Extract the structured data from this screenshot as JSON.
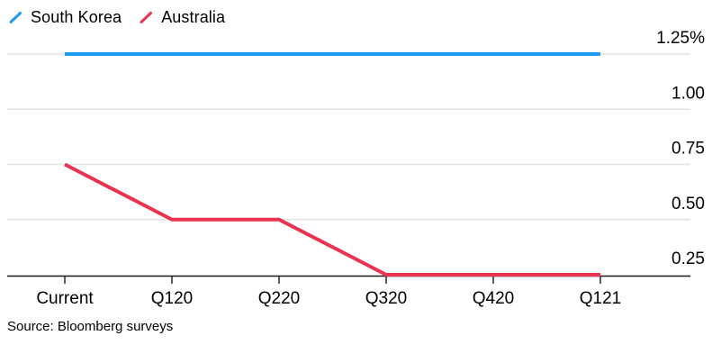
{
  "legend": {
    "items": [
      {
        "label": "South Korea",
        "color": "#1F9BF0",
        "marker": "slash-icon"
      },
      {
        "label": "Australia",
        "color": "#E93350",
        "marker": "slash-icon"
      }
    ]
  },
  "chart_data": {
    "type": "line",
    "categories": [
      "Current",
      "Q120",
      "Q220",
      "Q320",
      "Q420",
      "Q121"
    ],
    "series": [
      {
        "name": "South Korea",
        "color": "#1F9BF0",
        "values": [
          1.25,
          1.25,
          1.25,
          1.25,
          1.25,
          1.25
        ]
      },
      {
        "name": "Australia",
        "color": "#E93350",
        "values": [
          0.75,
          0.5,
          0.5,
          0.25,
          0.25,
          0.25
        ]
      }
    ],
    "title": "",
    "xlabel": "",
    "ylabel": "",
    "unit": "%",
    "ylim": [
      0.25,
      1.25
    ],
    "yticks": [
      0.25,
      0.5,
      0.75,
      1.0,
      1.25
    ],
    "ytick_labels": [
      "0.25",
      "0.50",
      "0.75",
      "1.00",
      "1.25%"
    ],
    "y_axis_side": "right",
    "grid": true,
    "legend_position": "top-left"
  },
  "source": {
    "text": "Source: Bloomberg surveys"
  },
  "colors": {
    "gridline": "#E2E2E2",
    "axis": "#1A1A1A",
    "text": "#000000",
    "background": "#FFFFFF"
  }
}
